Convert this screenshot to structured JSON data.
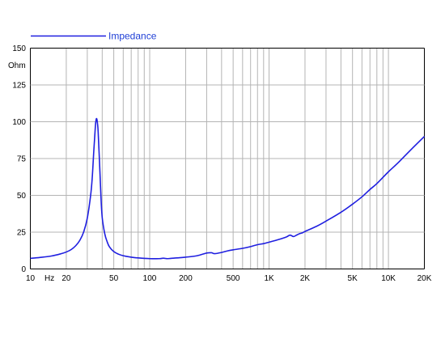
{
  "chart_data": {
    "type": "line",
    "title": "",
    "xlabel": "",
    "ylabel": "Ohm",
    "x_unit_label": "Hz",
    "x_scale": "log",
    "xlim": [
      10,
      20000
    ],
    "ylim": [
      0,
      150
    ],
    "grid": true,
    "legend_position": "top-left",
    "colors": {
      "series": "#1f1fe0",
      "grid": "#b4b4b4",
      "legend_text": "#1f3fd6",
      "axis": "#000000"
    },
    "y_ticks": [
      {
        "value": 0,
        "label": "0"
      },
      {
        "value": 25,
        "label": "25"
      },
      {
        "value": 50,
        "label": "50"
      },
      {
        "value": 75,
        "label": "75"
      },
      {
        "value": 100,
        "label": "100"
      },
      {
        "value": 125,
        "label": "125"
      },
      {
        "value": 150,
        "label": "150"
      }
    ],
    "x_ticks": [
      {
        "value": 10,
        "label": "10"
      },
      {
        "value": 20,
        "label": "20"
      },
      {
        "value": 50,
        "label": "50"
      },
      {
        "value": 100,
        "label": "100"
      },
      {
        "value": 200,
        "label": "200"
      },
      {
        "value": 500,
        "label": "500"
      },
      {
        "value": 1000,
        "label": "1K"
      },
      {
        "value": 2000,
        "label": "2K"
      },
      {
        "value": 5000,
        "label": "5K"
      },
      {
        "value": 10000,
        "label": "10K"
      },
      {
        "value": 20000,
        "label": "20K"
      }
    ],
    "x_grid_values": [
      10,
      20,
      30,
      40,
      50,
      60,
      70,
      80,
      90,
      100,
      200,
      300,
      400,
      500,
      600,
      700,
      800,
      900,
      1000,
      2000,
      3000,
      4000,
      5000,
      6000,
      7000,
      8000,
      9000,
      10000,
      20000
    ],
    "series": [
      {
        "name": "Impedance",
        "x": [
          10,
          12,
          15,
          18,
          20,
          22,
          24,
          26,
          28,
          30,
          32,
          33,
          34,
          35,
          35.5,
          36,
          36.5,
          37,
          38,
          39,
          40,
          42,
          44,
          46,
          50,
          55,
          60,
          70,
          80,
          100,
          120,
          130,
          140,
          150,
          170,
          200,
          250,
          300,
          330,
          350,
          400,
          450,
          500,
          600,
          700,
          800,
          900,
          1000,
          1200,
          1400,
          1500,
          1600,
          1700,
          1800,
          1900,
          2000,
          2500,
          3000,
          4000,
          5000,
          6000,
          7000,
          8000,
          10000,
          12000,
          15000,
          20000
        ],
        "y": [
          7.2,
          7.8,
          8.8,
          10.3,
          11.5,
          13.2,
          15.8,
          19.5,
          25.2,
          34.5,
          50,
          62,
          80,
          96,
          101,
          102,
          99,
          93,
          72,
          50,
          35,
          24,
          18.5,
          15,
          11.8,
          10,
          9,
          8,
          7.5,
          7,
          7,
          7.3,
          7,
          7.2,
          7.5,
          8,
          9,
          10.8,
          11,
          10.4,
          11.2,
          12.3,
          13,
          14,
          15.2,
          16.5,
          17.2,
          18.2,
          20,
          21.8,
          23,
          22,
          23,
          24,
          24.5,
          25.5,
          29,
          32.5,
          38.5,
          44,
          49,
          54,
          58,
          66,
          72,
          80,
          90
        ]
      }
    ]
  }
}
